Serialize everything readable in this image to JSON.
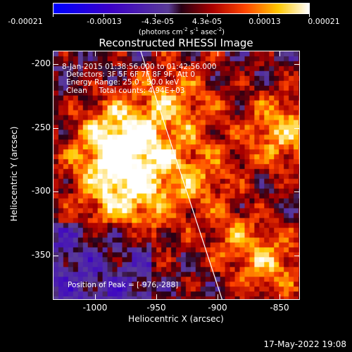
{
  "colorbar": {
    "labels": [
      "-0.00021",
      "-0.00013",
      "-4.3e-05",
      "4.3e-05",
      "0.00013",
      "0.00021"
    ],
    "unit_main": "(photons cm",
    "unit_exp1": "-2",
    "unit_mid": " s",
    "unit_exp2": "-1",
    "unit_mid2": " asec",
    "unit_exp3": "-2",
    "unit_end": ")"
  },
  "plot": {
    "title": "Reconstructed RHESSI Image",
    "xlabel": "Heliocentric X (arcsec)",
    "ylabel": "Heliocentric Y (arcsec)",
    "xticks": [
      "-1000",
      "-950",
      "-900",
      "-850"
    ],
    "yticks": [
      "-200",
      "-250",
      "-300",
      "-350"
    ]
  },
  "annotations": {
    "line1": "8-Jan-2015 01:38:56.000 to 01:42:56.000",
    "line2": "Detectors: 3F 5F 6F 7F 8F 9F, Att 0",
    "line3": "Energy Range: 25.0 - 50.0 keV",
    "line4": "Clean     Total counts: 4.94E+03",
    "peak": "Position of Peak = [-976,-288]"
  },
  "timestamp": "17-May-2022 19:08"
}
